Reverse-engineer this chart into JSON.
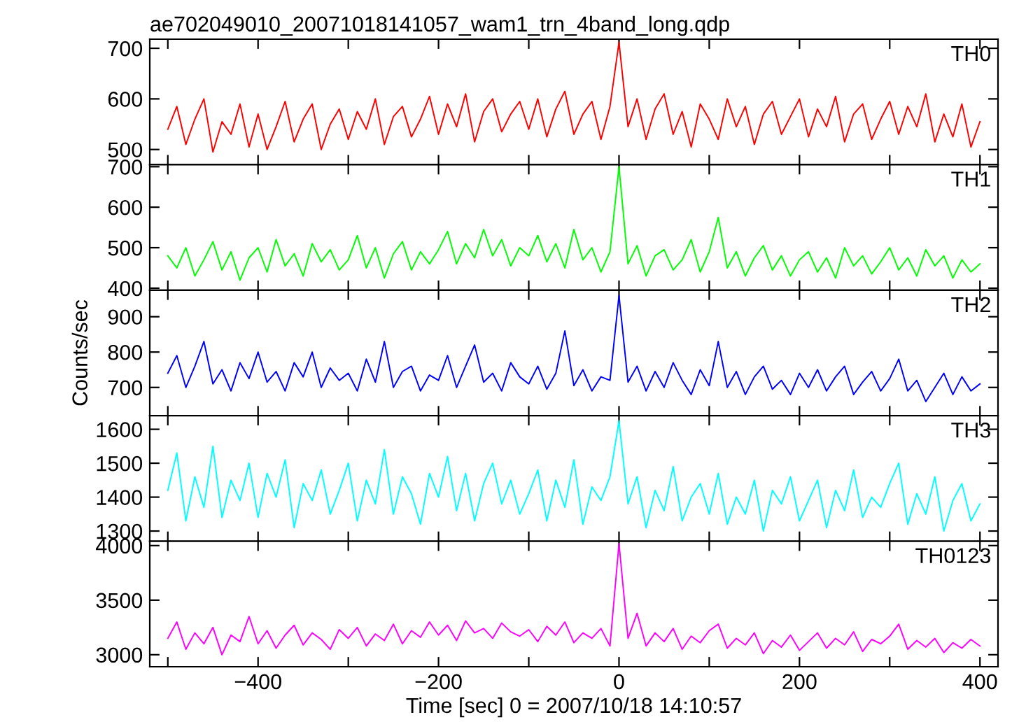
{
  "chart_data": [
    {
      "type": "line",
      "title": "ae702049010_20071018141057_wam1_trn_4band_long.qdp",
      "tick_labels": "y",
      "xlim": [
        -520,
        420
      ],
      "xticks": [
        -500,
        -400,
        -300,
        -200,
        -100,
        0,
        100,
        200,
        300,
        400
      ],
      "ylim": [
        470,
        718
      ],
      "yticks": [
        500,
        600,
        700
      ],
      "x": [
        -500,
        -490,
        -480,
        -470,
        -460,
        -450,
        -440,
        -430,
        -420,
        -410,
        -400,
        -390,
        -380,
        -370,
        -360,
        -350,
        -340,
        -330,
        -320,
        -310,
        -300,
        -290,
        -280,
        -270,
        -260,
        -250,
        -240,
        -230,
        -220,
        -210,
        -200,
        -190,
        -180,
        -170,
        -160,
        -150,
        -140,
        -130,
        -120,
        -110,
        -100,
        -90,
        -80,
        -70,
        -60,
        -50,
        -40,
        -30,
        -20,
        -10,
        0,
        10,
        20,
        30,
        40,
        50,
        60,
        70,
        80,
        90,
        100,
        110,
        120,
        130,
        140,
        150,
        160,
        170,
        180,
        190,
        200,
        210,
        220,
        230,
        240,
        250,
        260,
        270,
        280,
        290,
        300,
        310,
        320,
        330,
        340,
        350,
        360,
        370,
        380,
        390,
        400
      ],
      "series": [
        {
          "name": "TH0",
          "color": "#ff0000",
          "values": [
            540,
            585,
            510,
            560,
            600,
            495,
            555,
            530,
            590,
            505,
            570,
            500,
            545,
            595,
            515,
            560,
            590,
            500,
            550,
            580,
            520,
            575,
            540,
            600,
            510,
            565,
            585,
            525,
            560,
            605,
            530,
            590,
            545,
            610,
            515,
            575,
            600,
            535,
            570,
            595,
            540,
            600,
            525,
            580,
            615,
            530,
            570,
            595,
            520,
            585,
            712,
            545,
            600,
            520,
            580,
            610,
            530,
            575,
            505,
            590,
            560,
            520,
            600,
            545,
            585,
            510,
            570,
            595,
            530,
            565,
            600,
            525,
            580,
            545,
            605,
            515,
            570,
            590,
            520,
            560,
            595,
            530,
            585,
            545,
            610,
            515,
            570,
            525,
            590,
            505,
            555
          ]
        }
      ]
    },
    {
      "type": "line",
      "tick_labels": "y",
      "xlim": [
        -520,
        420
      ],
      "xticks": [
        -500,
        -400,
        -300,
        -200,
        -100,
        0,
        100,
        200,
        300,
        400
      ],
      "ylim": [
        395,
        705
      ],
      "yticks": [
        400,
        500,
        600,
        700
      ],
      "x": [
        -500,
        -490,
        -480,
        -470,
        -460,
        -450,
        -440,
        -430,
        -420,
        -410,
        -400,
        -390,
        -380,
        -370,
        -360,
        -350,
        -340,
        -330,
        -320,
        -310,
        -300,
        -290,
        -280,
        -270,
        -260,
        -250,
        -240,
        -230,
        -220,
        -210,
        -200,
        -190,
        -180,
        -170,
        -160,
        -150,
        -140,
        -130,
        -120,
        -110,
        -100,
        -90,
        -80,
        -70,
        -60,
        -50,
        -40,
        -30,
        -20,
        -10,
        0,
        10,
        20,
        30,
        40,
        50,
        60,
        70,
        80,
        90,
        100,
        110,
        120,
        130,
        140,
        150,
        160,
        170,
        180,
        190,
        200,
        210,
        220,
        230,
        240,
        250,
        260,
        270,
        280,
        290,
        300,
        310,
        320,
        330,
        340,
        350,
        360,
        370,
        380,
        390,
        400
      ],
      "series": [
        {
          "name": "TH1",
          "color": "#00ff00",
          "values": [
            480,
            450,
            500,
            430,
            470,
            515,
            445,
            490,
            420,
            475,
            500,
            440,
            520,
            455,
            485,
            430,
            510,
            465,
            495,
            445,
            470,
            530,
            450,
            500,
            425,
            485,
            515,
            445,
            490,
            460,
            495,
            540,
            460,
            510,
            475,
            545,
            480,
            520,
            455,
            500,
            480,
            530,
            465,
            510,
            450,
            545,
            470,
            500,
            440,
            490,
            700,
            460,
            505,
            430,
            480,
            495,
            445,
            470,
            520,
            440,
            490,
            575,
            450,
            490,
            430,
            475,
            505,
            445,
            480,
            430,
            470,
            490,
            440,
            475,
            425,
            500,
            455,
            480,
            435,
            465,
            500,
            445,
            475,
            430,
            495,
            455,
            480,
            425,
            470,
            440,
            460
          ]
        }
      ]
    },
    {
      "type": "line",
      "tick_labels": "y",
      "ylabel": "Counts/sec",
      "xlim": [
        -520,
        420
      ],
      "xticks": [
        -500,
        -400,
        -300,
        -200,
        -100,
        0,
        100,
        200,
        300,
        400
      ],
      "ylim": [
        620,
        975
      ],
      "yticks": [
        700,
        800,
        900
      ],
      "x": [
        -500,
        -490,
        -480,
        -470,
        -460,
        -450,
        -440,
        -430,
        -420,
        -410,
        -400,
        -390,
        -380,
        -370,
        -360,
        -350,
        -340,
        -330,
        -320,
        -310,
        -300,
        -290,
        -280,
        -270,
        -260,
        -250,
        -240,
        -230,
        -220,
        -210,
        -200,
        -190,
        -180,
        -170,
        -160,
        -150,
        -140,
        -130,
        -120,
        -110,
        -100,
        -90,
        -80,
        -70,
        -60,
        -50,
        -40,
        -30,
        -20,
        -10,
        0,
        10,
        20,
        30,
        40,
        50,
        60,
        70,
        80,
        90,
        100,
        110,
        120,
        130,
        140,
        150,
        160,
        170,
        180,
        190,
        200,
        210,
        220,
        230,
        240,
        250,
        260,
        270,
        280,
        290,
        300,
        310,
        320,
        330,
        340,
        350,
        360,
        370,
        380,
        390,
        400
      ],
      "series": [
        {
          "name": "TH2",
          "color": "#0000ff",
          "values": [
            740,
            790,
            700,
            760,
            830,
            710,
            750,
            690,
            770,
            725,
            800,
            715,
            745,
            690,
            770,
            730,
            800,
            700,
            755,
            720,
            740,
            690,
            780,
            715,
            830,
            700,
            745,
            760,
            690,
            735,
            720,
            790,
            700,
            760,
            820,
            715,
            740,
            690,
            770,
            730,
            710,
            760,
            695,
            740,
            860,
            705,
            750,
            690,
            730,
            720,
            960,
            715,
            760,
            690,
            745,
            700,
            770,
            720,
            680,
            750,
            705,
            830,
            700,
            745,
            680,
            730,
            760,
            695,
            720,
            680,
            740,
            700,
            750,
            690,
            730,
            760,
            680,
            715,
            745,
            690,
            725,
            780,
            690,
            720,
            660,
            700,
            740,
            680,
            730,
            690,
            710
          ]
        }
      ]
    },
    {
      "type": "line",
      "tick_labels": "y",
      "xlim": [
        -520,
        420
      ],
      "xticks": [
        -500,
        -400,
        -300,
        -200,
        -100,
        0,
        100,
        200,
        300,
        400
      ],
      "ylim": [
        1270,
        1640
      ],
      "yticks": [
        1300,
        1400,
        1500,
        1600
      ],
      "x": [
        -500,
        -490,
        -480,
        -470,
        -460,
        -450,
        -440,
        -430,
        -420,
        -410,
        -400,
        -390,
        -380,
        -370,
        -360,
        -350,
        -340,
        -330,
        -320,
        -310,
        -300,
        -290,
        -280,
        -270,
        -260,
        -250,
        -240,
        -230,
        -220,
        -210,
        -200,
        -190,
        -180,
        -170,
        -160,
        -150,
        -140,
        -130,
        -120,
        -110,
        -100,
        -90,
        -80,
        -70,
        -60,
        -50,
        -40,
        -30,
        -20,
        -10,
        0,
        10,
        20,
        30,
        40,
        50,
        60,
        70,
        80,
        90,
        100,
        110,
        120,
        130,
        140,
        150,
        160,
        170,
        180,
        190,
        200,
        210,
        220,
        230,
        240,
        250,
        260,
        270,
        280,
        290,
        300,
        310,
        320,
        330,
        340,
        350,
        360,
        370,
        380,
        390,
        400
      ],
      "series": [
        {
          "name": "TH3",
          "color": "#00ffff",
          "values": [
            1420,
            1530,
            1330,
            1460,
            1370,
            1550,
            1340,
            1450,
            1390,
            1500,
            1340,
            1470,
            1400,
            1510,
            1310,
            1440,
            1390,
            1480,
            1350,
            1420,
            1500,
            1330,
            1450,
            1380,
            1540,
            1350,
            1460,
            1410,
            1320,
            1470,
            1400,
            1520,
            1360,
            1470,
            1330,
            1440,
            1500,
            1380,
            1450,
            1350,
            1410,
            1480,
            1330,
            1450,
            1370,
            1510,
            1320,
            1430,
            1390,
            1460,
            1625,
            1380,
            1460,
            1310,
            1420,
            1360,
            1490,
            1330,
            1400,
            1440,
            1350,
            1470,
            1320,
            1400,
            1350,
            1450,
            1300,
            1420,
            1380,
            1460,
            1330,
            1390,
            1450,
            1310,
            1420,
            1360,
            1480,
            1340,
            1400,
            1370,
            1440,
            1500,
            1320,
            1410,
            1350,
            1460,
            1300,
            1390,
            1440,
            1330,
            1380
          ]
        }
      ]
    },
    {
      "type": "line",
      "xlabel": "Time [sec] 0 = 2007/10/18 14:10:57",
      "xlim": [
        -520,
        420
      ],
      "xticks": [
        {
          "value": -500,
          "label": null
        },
        {
          "value": -400,
          "label": "−400"
        },
        {
          "value": -300,
          "label": null
        },
        {
          "value": -200,
          "label": "−200"
        },
        {
          "value": -100,
          "label": null
        },
        0,
        {
          "value": 100,
          "label": null
        },
        200,
        {
          "value": 300,
          "label": null
        },
        400
      ],
      "ylim": [
        2890,
        4040
      ],
      "yticks": [
        3000,
        3500,
        4000
      ],
      "x": [
        -500,
        -490,
        -480,
        -470,
        -460,
        -450,
        -440,
        -430,
        -420,
        -410,
        -400,
        -390,
        -380,
        -370,
        -360,
        -350,
        -340,
        -330,
        -320,
        -310,
        -300,
        -290,
        -280,
        -270,
        -260,
        -250,
        -240,
        -230,
        -220,
        -210,
        -200,
        -190,
        -180,
        -170,
        -160,
        -150,
        -140,
        -130,
        -120,
        -110,
        -100,
        -90,
        -80,
        -70,
        -60,
        -50,
        -40,
        -30,
        -20,
        -10,
        0,
        10,
        20,
        30,
        40,
        50,
        60,
        70,
        80,
        90,
        100,
        110,
        120,
        130,
        140,
        150,
        160,
        170,
        180,
        190,
        200,
        210,
        220,
        230,
        240,
        250,
        260,
        270,
        280,
        290,
        300,
        310,
        320,
        330,
        340,
        350,
        360,
        370,
        380,
        390,
        400
      ],
      "series": [
        {
          "name": "TH0123",
          "color": "#ff00ff",
          "values": [
            3150,
            3300,
            3050,
            3200,
            3100,
            3250,
            3000,
            3180,
            3120,
            3350,
            3100,
            3220,
            3060,
            3180,
            3270,
            3090,
            3200,
            3140,
            3050,
            3230,
            3150,
            3250,
            3080,
            3190,
            3130,
            3280,
            3100,
            3220,
            3160,
            3300,
            3180,
            3270,
            3130,
            3310,
            3200,
            3240,
            3150,
            3290,
            3210,
            3170,
            3230,
            3120,
            3260,
            3180,
            3300,
            3110,
            3200,
            3150,
            3240,
            3080,
            4020,
            3150,
            3380,
            3080,
            3200,
            3120,
            3240,
            3050,
            3170,
            3110,
            3220,
            3280,
            3060,
            3150,
            3090,
            3200,
            3010,
            3130,
            3070,
            3180,
            3040,
            3120,
            3200,
            3060,
            3150,
            3090,
            3210,
            3030,
            3140,
            3100,
            3170,
            3280,
            3050,
            3130,
            3070,
            3150,
            3020,
            3110,
            3060,
            3140,
            3080
          ]
        }
      ]
    }
  ]
}
